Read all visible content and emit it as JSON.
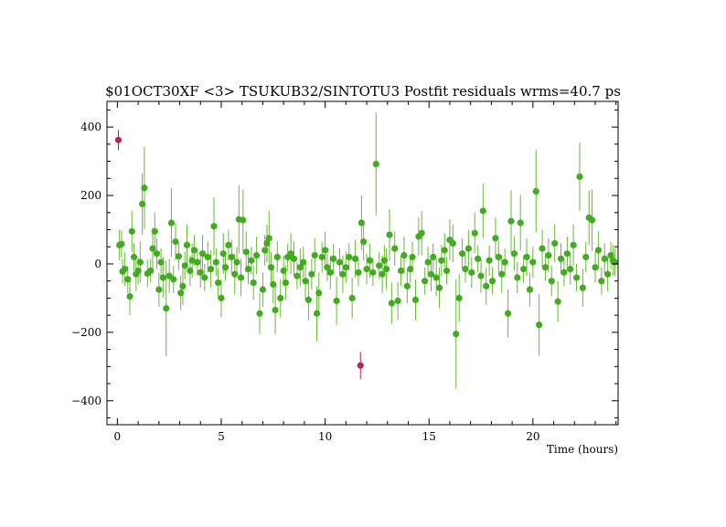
{
  "chart_data": {
    "type": "scatter",
    "title": "$01OCT30XF <3> TSUKUB32/SINTOTU3 Postfit residuals wrms=40.7  ps",
    "xlabel": "Time (hours)",
    "ylabel": "",
    "xlim": [
      -0.5,
      24.1
    ],
    "ylim": [
      -470,
      475
    ],
    "xticks": [
      0,
      5,
      10,
      15,
      20
    ],
    "yticks": [
      -400,
      -200,
      0,
      200,
      400
    ],
    "grid": false,
    "colors": {
      "good": "#44aa22",
      "good_bar": "#66bb33",
      "flagged": "#b02a50"
    },
    "series": [
      {
        "label_kind": "used",
        "points": [
          [
            0.1,
            55,
            45
          ],
          [
            0.2,
            58,
            40
          ],
          [
            0.25,
            -22,
            35
          ],
          [
            0.35,
            -15,
            50
          ],
          [
            0.5,
            -45,
            40
          ],
          [
            0.6,
            -95,
            55
          ],
          [
            0.7,
            95,
            60
          ],
          [
            0.8,
            20,
            40
          ],
          [
            0.9,
            -30,
            50
          ],
          [
            1.0,
            -20,
            40
          ],
          [
            1.1,
            5,
            60
          ],
          [
            1.2,
            175,
            90
          ],
          [
            1.3,
            222,
            120
          ],
          [
            1.45,
            -28,
            40
          ],
          [
            1.6,
            -20,
            35
          ],
          [
            1.7,
            45,
            60
          ],
          [
            1.8,
            95,
            55
          ],
          [
            1.9,
            30,
            45
          ],
          [
            2.0,
            -75,
            50
          ],
          [
            2.1,
            5,
            40
          ],
          [
            2.2,
            -40,
            60
          ],
          [
            2.35,
            -130,
            140
          ],
          [
            2.5,
            -35,
            50
          ],
          [
            2.6,
            120,
            100
          ],
          [
            2.7,
            -45,
            40
          ],
          [
            2.8,
            65,
            55
          ],
          [
            2.95,
            22,
            40
          ],
          [
            3.05,
            -85,
            50
          ],
          [
            3.15,
            -65,
            55
          ],
          [
            3.25,
            -5,
            40
          ],
          [
            3.35,
            55,
            60
          ],
          [
            3.5,
            -20,
            45
          ],
          [
            3.6,
            10,
            50
          ],
          [
            3.7,
            40,
            45
          ],
          [
            3.85,
            5,
            40
          ],
          [
            4.0,
            -25,
            45
          ],
          [
            4.1,
            30,
            55
          ],
          [
            4.2,
            -40,
            40
          ],
          [
            4.35,
            20,
            45
          ],
          [
            4.5,
            -15,
            55
          ],
          [
            4.65,
            110,
            85
          ],
          [
            4.75,
            5,
            40
          ],
          [
            4.85,
            -55,
            45
          ],
          [
            5.0,
            -100,
            55
          ],
          [
            5.1,
            30,
            60
          ],
          [
            5.2,
            -10,
            40
          ],
          [
            5.35,
            55,
            45
          ],
          [
            5.5,
            20,
            50
          ],
          [
            5.65,
            -30,
            60
          ],
          [
            5.75,
            5,
            45
          ],
          [
            5.85,
            130,
            100
          ],
          [
            5.95,
            -40,
            55
          ],
          [
            6.05,
            128,
            90
          ],
          [
            6.2,
            35,
            60
          ],
          [
            6.3,
            -15,
            45
          ],
          [
            6.45,
            10,
            40
          ],
          [
            6.55,
            -55,
            50
          ],
          [
            6.7,
            25,
            55
          ],
          [
            6.85,
            -145,
            60
          ],
          [
            7.0,
            -75,
            50
          ],
          [
            7.1,
            40,
            45
          ],
          [
            7.2,
            60,
            55
          ],
          [
            7.3,
            75,
            80
          ],
          [
            7.4,
            -10,
            45
          ],
          [
            7.5,
            -60,
            55
          ],
          [
            7.6,
            -135,
            70
          ],
          [
            7.7,
            20,
            45
          ],
          [
            7.85,
            -100,
            55
          ],
          [
            8.0,
            -20,
            45
          ],
          [
            8.1,
            -55,
            50
          ],
          [
            8.2,
            20,
            40
          ],
          [
            8.35,
            30,
            60
          ],
          [
            8.5,
            15,
            50
          ],
          [
            8.65,
            -35,
            40
          ],
          [
            8.8,
            -10,
            55
          ],
          [
            8.95,
            5,
            45
          ],
          [
            9.05,
            -50,
            55
          ],
          [
            9.2,
            -105,
            60
          ],
          [
            9.35,
            -30,
            45
          ],
          [
            9.5,
            25,
            50
          ],
          [
            9.6,
            -145,
            80
          ],
          [
            9.7,
            -85,
            60
          ],
          [
            9.85,
            20,
            45
          ],
          [
            10.0,
            40,
            55
          ],
          [
            10.1,
            -10,
            40
          ],
          [
            10.25,
            -25,
            50
          ],
          [
            10.4,
            15,
            45
          ],
          [
            10.55,
            -108,
            70
          ],
          [
            10.7,
            5,
            40
          ],
          [
            10.85,
            -30,
            55
          ],
          [
            11.0,
            -10,
            45
          ],
          [
            11.15,
            20,
            40
          ],
          [
            11.3,
            -100,
            60
          ],
          [
            11.45,
            15,
            55
          ],
          [
            11.6,
            -25,
            40
          ],
          [
            11.75,
            120,
            80
          ],
          [
            11.85,
            65,
            55
          ],
          [
            12.0,
            -15,
            45
          ],
          [
            12.15,
            10,
            50
          ],
          [
            12.3,
            -25,
            40
          ],
          [
            12.45,
            292,
            150
          ],
          [
            12.6,
            -5,
            40
          ],
          [
            12.75,
            -30,
            55
          ],
          [
            12.85,
            10,
            45
          ],
          [
            12.95,
            -15,
            60
          ],
          [
            13.1,
            85,
            75
          ],
          [
            13.2,
            -115,
            60
          ],
          [
            13.35,
            45,
            50
          ],
          [
            13.5,
            -108,
            55
          ],
          [
            13.65,
            -20,
            45
          ],
          [
            13.8,
            25,
            55
          ],
          [
            13.95,
            -65,
            50
          ],
          [
            14.1,
            -15,
            40
          ],
          [
            14.2,
            20,
            45
          ],
          [
            14.35,
            -105,
            60
          ],
          [
            14.5,
            80,
            55
          ],
          [
            14.65,
            90,
            65
          ],
          [
            14.8,
            -50,
            40
          ],
          [
            14.95,
            5,
            45
          ],
          [
            15.1,
            -30,
            50
          ],
          [
            15.2,
            20,
            40
          ],
          [
            15.35,
            -40,
            55
          ],
          [
            15.5,
            -70,
            60
          ],
          [
            15.6,
            10,
            45
          ],
          [
            15.75,
            40,
            50
          ],
          [
            15.85,
            -20,
            40
          ],
          [
            16.0,
            70,
            60
          ],
          [
            16.15,
            60,
            55
          ],
          [
            16.3,
            -205,
            160
          ],
          [
            16.45,
            -100,
            70
          ],
          [
            16.6,
            30,
            45
          ],
          [
            16.75,
            -15,
            40
          ],
          [
            16.9,
            45,
            55
          ],
          [
            17.05,
            -25,
            45
          ],
          [
            17.2,
            90,
            60
          ],
          [
            17.35,
            15,
            40
          ],
          [
            17.5,
            -35,
            50
          ],
          [
            17.6,
            155,
            80
          ],
          [
            17.75,
            -65,
            55
          ],
          [
            17.9,
            10,
            45
          ],
          [
            18.05,
            -50,
            40
          ],
          [
            18.2,
            75,
            60
          ],
          [
            18.35,
            20,
            45
          ],
          [
            18.5,
            -30,
            55
          ],
          [
            18.65,
            5,
            40
          ],
          [
            18.8,
            -145,
            70
          ],
          [
            18.95,
            125,
            90
          ],
          [
            19.1,
            30,
            50
          ],
          [
            19.25,
            -40,
            45
          ],
          [
            19.4,
            120,
            80
          ],
          [
            19.55,
            -15,
            40
          ],
          [
            19.7,
            20,
            55
          ],
          [
            19.85,
            -75,
            50
          ],
          [
            20.0,
            5,
            45
          ],
          [
            20.15,
            212,
            120
          ],
          [
            20.3,
            -178,
            90
          ],
          [
            20.45,
            45,
            55
          ],
          [
            20.6,
            -10,
            40
          ],
          [
            20.75,
            25,
            50
          ],
          [
            20.9,
            -50,
            45
          ],
          [
            21.05,
            60,
            55
          ],
          [
            21.2,
            -110,
            60
          ],
          [
            21.35,
            15,
            45
          ],
          [
            21.5,
            -25,
            40
          ],
          [
            21.65,
            30,
            50
          ],
          [
            21.8,
            -15,
            45
          ],
          [
            21.95,
            55,
            60
          ],
          [
            22.1,
            -40,
            40
          ],
          [
            22.25,
            255,
            100
          ],
          [
            22.4,
            -70,
            55
          ],
          [
            22.55,
            20,
            45
          ],
          [
            22.7,
            135,
            80
          ],
          [
            22.85,
            128,
            90
          ],
          [
            23.0,
            -10,
            45
          ],
          [
            23.15,
            40,
            55
          ],
          [
            23.3,
            -50,
            40
          ],
          [
            23.45,
            15,
            45
          ],
          [
            23.6,
            -30,
            50
          ],
          [
            23.75,
            25,
            40
          ],
          [
            23.85,
            10,
            45
          ],
          [
            23.95,
            5,
            40
          ]
        ]
      },
      {
        "label_kind": "outliers",
        "points": [
          [
            0.05,
            362,
            30
          ],
          [
            11.7,
            -297,
            40
          ]
        ]
      }
    ]
  }
}
